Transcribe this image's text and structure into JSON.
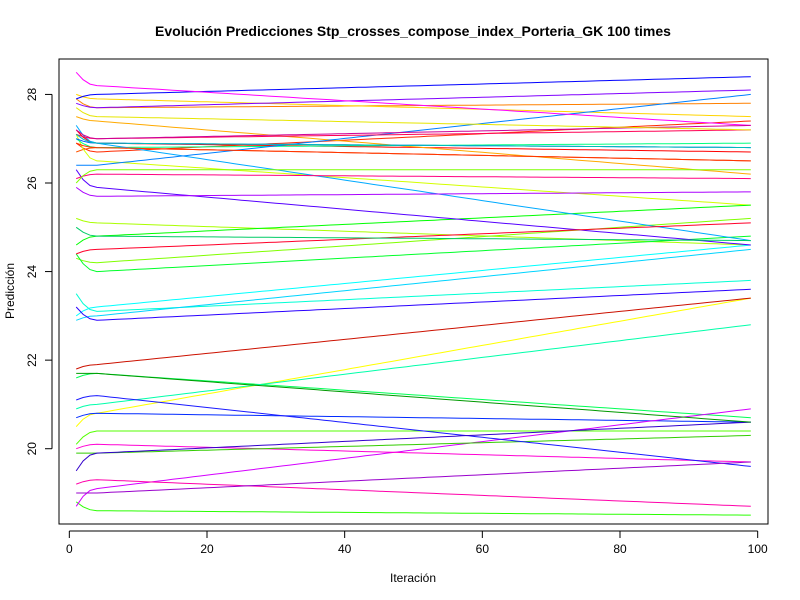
{
  "chart_data": {
    "type": "line",
    "title": "Evolución Predicciones Stp_crosses_compose_index_Porteria_GK 100 times",
    "xlabel": "Iteración",
    "ylabel": "Predicción",
    "xlim": [
      -1.5,
      101.5
    ],
    "ylim": [
      18.3,
      28.8
    ],
    "xticks": [
      0,
      20,
      40,
      60,
      80,
      100
    ],
    "yticks": [
      20,
      22,
      24,
      26,
      28
    ],
    "grid": false,
    "legend": "none",
    "x_range": [
      1,
      99
    ],
    "series": [
      {
        "color": "#FF0000",
        "start": 27.2,
        "early": 26.9,
        "end": 26.7
      },
      {
        "color": "#FF2A00",
        "start": 26.9,
        "early": 26.7,
        "end": 27.4
      },
      {
        "color": "#FF5500",
        "start": 26.7,
        "early": 26.8,
        "end": 26.5
      },
      {
        "color": "#FF8000",
        "start": 27.9,
        "early": 27.7,
        "end": 27.8
      },
      {
        "color": "#FFAA00",
        "start": 27.5,
        "early": 27.4,
        "end": 26.2
      },
      {
        "color": "#FFD400",
        "start": 28.0,
        "early": 27.9,
        "end": 27.5
      },
      {
        "color": "#FFFF00",
        "start": 20.5,
        "early": 20.8,
        "end": 23.4
      },
      {
        "color": "#D4FF00",
        "start": 27.1,
        "early": 26.5,
        "end": 25.5
      },
      {
        "color": "#AAFF00",
        "start": 25.2,
        "early": 25.1,
        "end": 24.6
      },
      {
        "color": "#80FF00",
        "start": 24.3,
        "early": 24.2,
        "end": 25.2
      },
      {
        "color": "#55FF00",
        "start": 20.1,
        "early": 20.4,
        "end": 20.4
      },
      {
        "color": "#2AFF00",
        "start": 18.8,
        "early": 18.6,
        "end": 18.5
      },
      {
        "color": "#00FF00",
        "start": 24.6,
        "early": 24.8,
        "end": 25.5
      },
      {
        "color": "#00FF2A",
        "start": 24.4,
        "early": 24.0,
        "end": 24.8
      },
      {
        "color": "#00FF55",
        "start": 21.6,
        "early": 21.7,
        "end": 20.7
      },
      {
        "color": "#00FF80",
        "start": 27.0,
        "early": 26.8,
        "end": 26.9
      },
      {
        "color": "#00FFAA",
        "start": 20.9,
        "early": 21.0,
        "end": 22.8
      },
      {
        "color": "#00FFD4",
        "start": 23.5,
        "early": 23.1,
        "end": 23.8
      },
      {
        "color": "#00FFFF",
        "start": 23.0,
        "early": 23.2,
        "end": 24.6
      },
      {
        "color": "#00D4FF",
        "start": 22.9,
        "early": 23.0,
        "end": 24.5
      },
      {
        "color": "#00AAFF",
        "start": 27.3,
        "early": 26.9,
        "end": 24.7
      },
      {
        "color": "#0080FF",
        "start": 26.4,
        "early": 26.4,
        "end": 28.0
      },
      {
        "color": "#0055FF",
        "start": 27.0,
        "early": 26.9,
        "end": 26.8
      },
      {
        "color": "#002AFF",
        "start": 20.7,
        "early": 20.8,
        "end": 20.6
      },
      {
        "color": "#0000FF",
        "start": 27.9,
        "early": 28.0,
        "end": 28.4
      },
      {
        "color": "#2A00FF",
        "start": 23.2,
        "early": 22.9,
        "end": 23.6
      },
      {
        "color": "#5500FF",
        "start": 26.3,
        "early": 25.9,
        "end": 24.6
      },
      {
        "color": "#8000FF",
        "start": 27.8,
        "early": 27.7,
        "end": 28.1
      },
      {
        "color": "#AA00FF",
        "start": 25.9,
        "early": 25.7,
        "end": 25.8
      },
      {
        "color": "#D400FF",
        "start": 18.7,
        "early": 19.1,
        "end": 20.9
      },
      {
        "color": "#FF00FF",
        "start": 28.5,
        "early": 28.2,
        "end": 27.3
      },
      {
        "color": "#FF00D4",
        "start": 20.0,
        "early": 20.1,
        "end": 19.7
      },
      {
        "color": "#FF00AA",
        "start": 19.2,
        "early": 19.3,
        "end": 18.7
      },
      {
        "color": "#FF0080",
        "start": 26.1,
        "early": 26.2,
        "end": 26.1
      },
      {
        "color": "#FF0055",
        "start": 27.1,
        "early": 27.0,
        "end": 27.2
      },
      {
        "color": "#FF002A",
        "start": 24.4,
        "early": 24.5,
        "end": 25.1
      },
      {
        "color": "#CC1100",
        "start": 21.8,
        "early": 21.9,
        "end": 23.4
      },
      {
        "color": "#FF3300",
        "start": 26.9,
        "early": 26.8,
        "end": 26.5
      },
      {
        "color": "#7FFF00",
        "start": 26.0,
        "early": 26.3,
        "end": 26.3
      },
      {
        "color": "#33CC00",
        "start": 19.9,
        "early": 19.9,
        "end": 20.3
      },
      {
        "color": "#00CC66",
        "start": 25.0,
        "early": 24.8,
        "end": 24.7
      },
      {
        "color": "#00BBBB",
        "start": 27.1,
        "early": 26.9,
        "end": 26.8
      },
      {
        "color": "#1A1AFF",
        "start": 21.1,
        "early": 21.2,
        "end": 19.6
      },
      {
        "color": "#3300CC",
        "start": 19.5,
        "early": 19.9,
        "end": 20.6
      },
      {
        "color": "#9900CC",
        "start": 19.0,
        "early": 19.0,
        "end": 19.7
      },
      {
        "color": "#CC0099",
        "start": 27.2,
        "early": 27.0,
        "end": 27.3
      },
      {
        "color": "#E6E600",
        "start": 27.7,
        "early": 27.5,
        "end": 27.2
      },
      {
        "color": "#009900",
        "start": 21.7,
        "early": 21.7,
        "end": 20.6
      }
    ]
  }
}
